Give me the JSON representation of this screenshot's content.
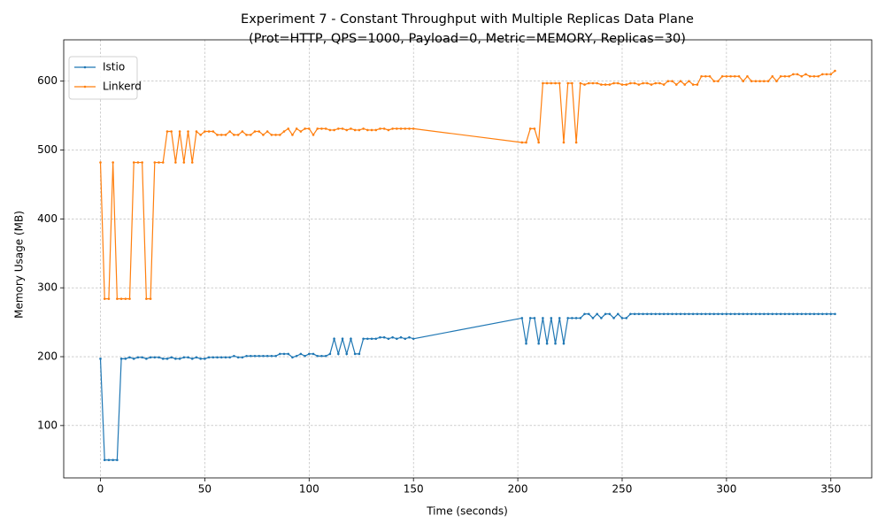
{
  "chart_data": {
    "type": "line",
    "title": "Experiment 7 - Constant Throughput with Multiple Replicas Data Plane",
    "subtitle": "(Prot=HTTP, QPS=1000, Payload=0, Metric=MEMORY, Replicas=30)",
    "x_label": "Time (seconds)",
    "y_label": "Memory Usage (MB)",
    "x": [
      0,
      2,
      4,
      6,
      8,
      10,
      12,
      14,
      16,
      18,
      20,
      22,
      24,
      26,
      28,
      30,
      32,
      34,
      36,
      38,
      40,
      42,
      44,
      46,
      48,
      50,
      52,
      54,
      56,
      58,
      60,
      62,
      64,
      66,
      68,
      70,
      72,
      74,
      76,
      78,
      80,
      82,
      84,
      86,
      88,
      90,
      92,
      94,
      96,
      98,
      100,
      102,
      104,
      106,
      108,
      110,
      112,
      114,
      116,
      118,
      120,
      122,
      124,
      126,
      128,
      130,
      132,
      134,
      136,
      138,
      140,
      142,
      144,
      146,
      148,
      150,
      202,
      204,
      206,
      208,
      210,
      212,
      214,
      216,
      218,
      220,
      222,
      224,
      226,
      228,
      230,
      232,
      234,
      236,
      238,
      240,
      242,
      244,
      246,
      248,
      250,
      252,
      254,
      256,
      258,
      260,
      262,
      264,
      266,
      268,
      270,
      272,
      274,
      276,
      278,
      280,
      282,
      284,
      286,
      288,
      290,
      292,
      294,
      296,
      298,
      300,
      302,
      304,
      306,
      308,
      310,
      312,
      314,
      316,
      318,
      320,
      322,
      324,
      326,
      328,
      330,
      332,
      334,
      336,
      338,
      340,
      342,
      344,
      346,
      348,
      350,
      352
    ],
    "series": [
      {
        "name": "Istio",
        "color": "#1f77b4",
        "values": [
          197,
          50,
          50,
          50,
          50,
          197,
          197,
          199,
          197,
          199,
          199,
          197,
          199,
          199,
          199,
          197,
          197,
          199,
          197,
          197,
          199,
          199,
          197,
          199,
          197,
          197,
          199,
          199,
          199,
          199,
          199,
          199,
          201,
          199,
          199,
          201,
          201,
          201,
          201,
          201,
          201,
          201,
          201,
          204,
          204,
          204,
          199,
          201,
          204,
          201,
          204,
          204,
          201,
          201,
          201,
          204,
          226,
          204,
          226,
          204,
          226,
          204,
          204,
          226,
          226,
          226,
          226,
          228,
          228,
          226,
          228,
          226,
          228,
          226,
          228,
          226,
          256,
          219,
          256,
          256,
          219,
          256,
          219,
          256,
          219,
          256,
          219,
          256,
          256,
          256,
          256,
          262,
          262,
          256,
          262,
          256,
          262,
          262,
          256,
          262,
          256,
          256,
          262,
          262,
          262,
          262,
          262,
          262,
          262,
          262,
          262,
          262,
          262,
          262,
          262,
          262,
          262,
          262,
          262,
          262,
          262,
          262,
          262,
          262,
          262,
          262,
          262,
          262,
          262,
          262,
          262,
          262,
          262,
          262,
          262,
          262,
          262,
          262,
          262,
          262,
          262,
          262,
          262,
          262,
          262,
          262,
          262,
          262,
          262,
          262,
          262,
          262
        ]
      },
      {
        "name": "Linkerd",
        "color": "#ff7f0e",
        "values": [
          482,
          284,
          284,
          482,
          284,
          284,
          284,
          284,
          482,
          482,
          482,
          284,
          284,
          482,
          482,
          482,
          527,
          527,
          482,
          527,
          482,
          527,
          482,
          527,
          522,
          527,
          527,
          527,
          522,
          522,
          522,
          527,
          522,
          522,
          527,
          522,
          522,
          527,
          527,
          522,
          527,
          522,
          522,
          522,
          527,
          531,
          522,
          531,
          527,
          531,
          531,
          522,
          531,
          531,
          531,
          529,
          529,
          531,
          531,
          529,
          531,
          529,
          529,
          531,
          529,
          529,
          529,
          531,
          531,
          529,
          531,
          531,
          531,
          531,
          531,
          531,
          511,
          511,
          531,
          531,
          511,
          597,
          597,
          597,
          597,
          597,
          511,
          597,
          597,
          511,
          597,
          595,
          597,
          597,
          597,
          595,
          595,
          595,
          597,
          597,
          595,
          595,
          597,
          597,
          595,
          597,
          597,
          595,
          597,
          597,
          595,
          600,
          600,
          595,
          600,
          595,
          600,
          595,
          595,
          607,
          607,
          607,
          600,
          600,
          607,
          607,
          607,
          607,
          607,
          600,
          607,
          600,
          600,
          600,
          600,
          600,
          607,
          600,
          607,
          607,
          607,
          610,
          610,
          607,
          610,
          607,
          607,
          607,
          610,
          610,
          610,
          615
        ]
      }
    ],
    "xlim": [
      -17.6,
      369.6
    ],
    "ylim": [
      24,
      660
    ],
    "xticks": [
      0,
      50,
      100,
      150,
      200,
      250,
      300,
      350
    ],
    "yticks": [
      100,
      200,
      300,
      400,
      500,
      600
    ],
    "grid": true,
    "legend": "upper-left"
  }
}
